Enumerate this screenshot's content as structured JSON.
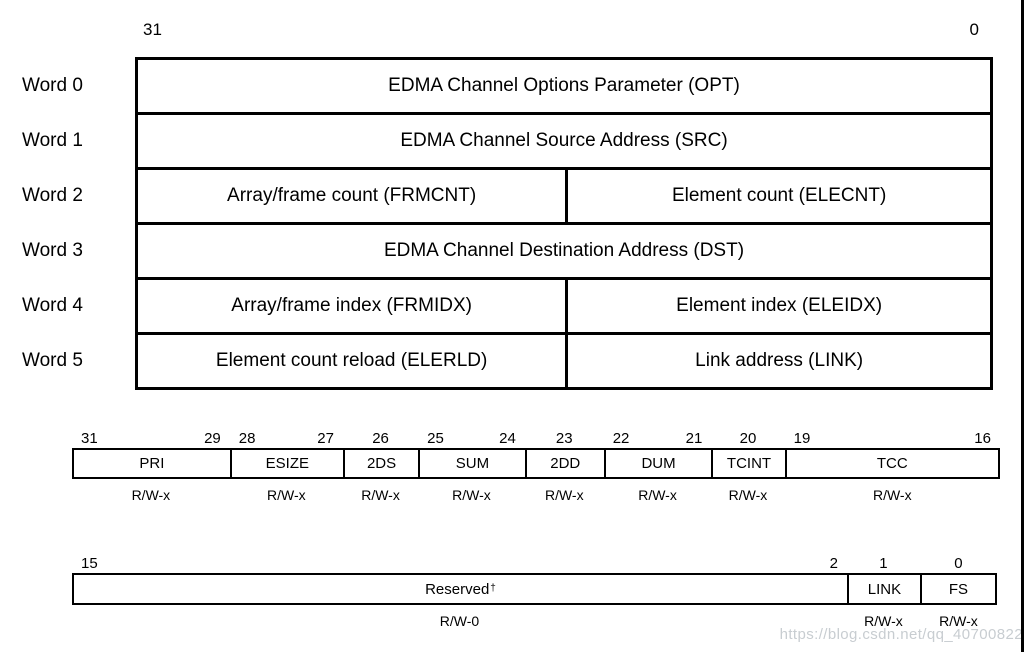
{
  "colors": {
    "line": "#000000",
    "watermark": "#c8cdd1"
  },
  "top_table": {
    "bit_left": "31",
    "bit_right": "0",
    "rows": [
      {
        "label": "Word 0",
        "cells": [
          "EDMA Channel Options Parameter (OPT)"
        ]
      },
      {
        "label": "Word 1",
        "cells": [
          "EDMA Channel Source Address (SRC)"
        ]
      },
      {
        "label": "Word 2",
        "cells": [
          "Array/frame count (FRMCNT)",
          "Element count (ELECNT)"
        ]
      },
      {
        "label": "Word 3",
        "cells": [
          "EDMA Channel Destination Address (DST)"
        ]
      },
      {
        "label": "Word 4",
        "cells": [
          "Array/frame index (FRMIDX)",
          "Element index (ELEIDX)"
        ]
      },
      {
        "label": "Word 5",
        "cells": [
          "Element count reload (ELERLD)",
          "Link address (LINK)"
        ]
      }
    ]
  },
  "upper_bitfield": {
    "fields": [
      {
        "name": "PRI",
        "bit_left": "31",
        "bit_right": "29",
        "access": "R/W-x",
        "width_pct": 17.0
      },
      {
        "name": "ESIZE",
        "bit_left": "28",
        "bit_right": "27",
        "access": "R/W-x",
        "width_pct": 12.2
      },
      {
        "name": "2DS",
        "bit_center": "26",
        "access": "R/W-x",
        "width_pct": 8.1
      },
      {
        "name": "SUM",
        "bit_left": "25",
        "bit_right": "24",
        "access": "R/W-x",
        "width_pct": 11.5
      },
      {
        "name": "2DD",
        "bit_center": "23",
        "access": "R/W-x",
        "width_pct": 8.5
      },
      {
        "name": "DUM",
        "bit_left": "22",
        "bit_right": "21",
        "access": "R/W-x",
        "width_pct": 11.6
      },
      {
        "name": "TCINT",
        "bit_center": "20",
        "access": "R/W-x",
        "width_pct": 7.9
      },
      {
        "name": "TCC",
        "bit_left": "19",
        "bit_right": "16",
        "access": "R/W-x",
        "width_pct": 23.2
      }
    ]
  },
  "lower_bitfield": {
    "fields": [
      {
        "name": "Reserved",
        "superscript": "†",
        "bit_left": "15",
        "bit_right": "2",
        "access": "R/W-0",
        "width_pct": 83.78
      },
      {
        "name": "LINK",
        "bit_center": "1",
        "access": "R/W-x",
        "width_pct": 7.89
      },
      {
        "name": "FS",
        "bit_center": "0",
        "access": "R/W-x",
        "width_pct": 8.33
      }
    ]
  },
  "watermark": {
    "text": "https://blog.csdn.net/qq_40700822"
  }
}
